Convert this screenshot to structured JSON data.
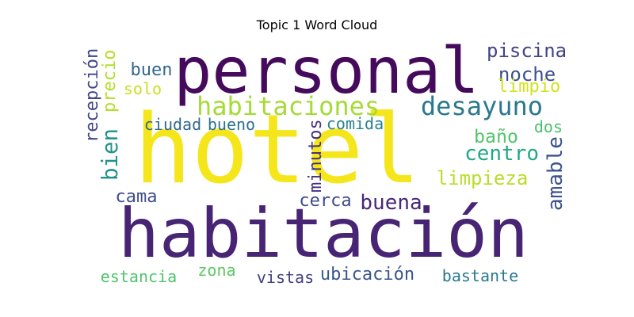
{
  "chart_data": {
    "type": "word-cloud",
    "title": "Topic 1 Word Cloud",
    "colormap": "viridis",
    "words": [
      {
        "text": "hotel",
        "color": "#f5e61c",
        "vertical": false
      },
      {
        "text": "habitación",
        "color": "#482475",
        "vertical": false
      },
      {
        "text": "personal",
        "color": "#450a5b",
        "vertical": false
      },
      {
        "text": "habitaciones",
        "color": "#a5db36",
        "vertical": false
      },
      {
        "text": "desayuno",
        "color": "#2a788e",
        "vertical": false
      },
      {
        "text": "ubicación",
        "color": "#39568c",
        "vertical": false
      },
      {
        "text": "piscina",
        "color": "#414487",
        "vertical": false
      },
      {
        "text": "centro",
        "color": "#22a884",
        "vertical": false
      },
      {
        "text": "bien",
        "color": "#21918c",
        "vertical": true
      },
      {
        "text": "precio",
        "color": "#b5de2b",
        "vertical": true
      },
      {
        "text": "recepción",
        "color": "#404688",
        "vertical": true
      },
      {
        "text": "amable",
        "color": "#3b528b",
        "vertical": true
      },
      {
        "text": "minutos",
        "color": "#46327e",
        "vertical": true
      },
      {
        "text": "buena",
        "color": "#482878",
        "vertical": false
      },
      {
        "text": "cama",
        "color": "#3e4c8a",
        "vertical": false
      },
      {
        "text": "limpieza",
        "color": "#b8de29",
        "vertical": false
      },
      {
        "text": "noche",
        "color": "#3b528b",
        "vertical": false
      },
      {
        "text": "buen",
        "color": "#31688e",
        "vertical": false
      },
      {
        "text": "limpio",
        "color": "#d2e21b",
        "vertical": false
      },
      {
        "text": "solo",
        "color": "#c8e020",
        "vertical": false
      },
      {
        "text": "ciudad",
        "color": "#31688e",
        "vertical": false
      },
      {
        "text": "bueno",
        "color": "#2c728e",
        "vertical": false
      },
      {
        "text": "comida",
        "color": "#26828e",
        "vertical": false
      },
      {
        "text": "baño",
        "color": "#52c569",
        "vertical": false
      },
      {
        "text": "dos",
        "color": "#4ac16d",
        "vertical": false
      },
      {
        "text": "cerca",
        "color": "#3e4a89",
        "vertical": false
      },
      {
        "text": "zona",
        "color": "#5ec962",
        "vertical": false
      },
      {
        "text": "estancia",
        "color": "#4ec36b",
        "vertical": false
      },
      {
        "text": "vistas",
        "color": "#433e85",
        "vertical": false
      },
      {
        "text": "bastante",
        "color": "#2a788e",
        "vertical": false
      }
    ]
  }
}
